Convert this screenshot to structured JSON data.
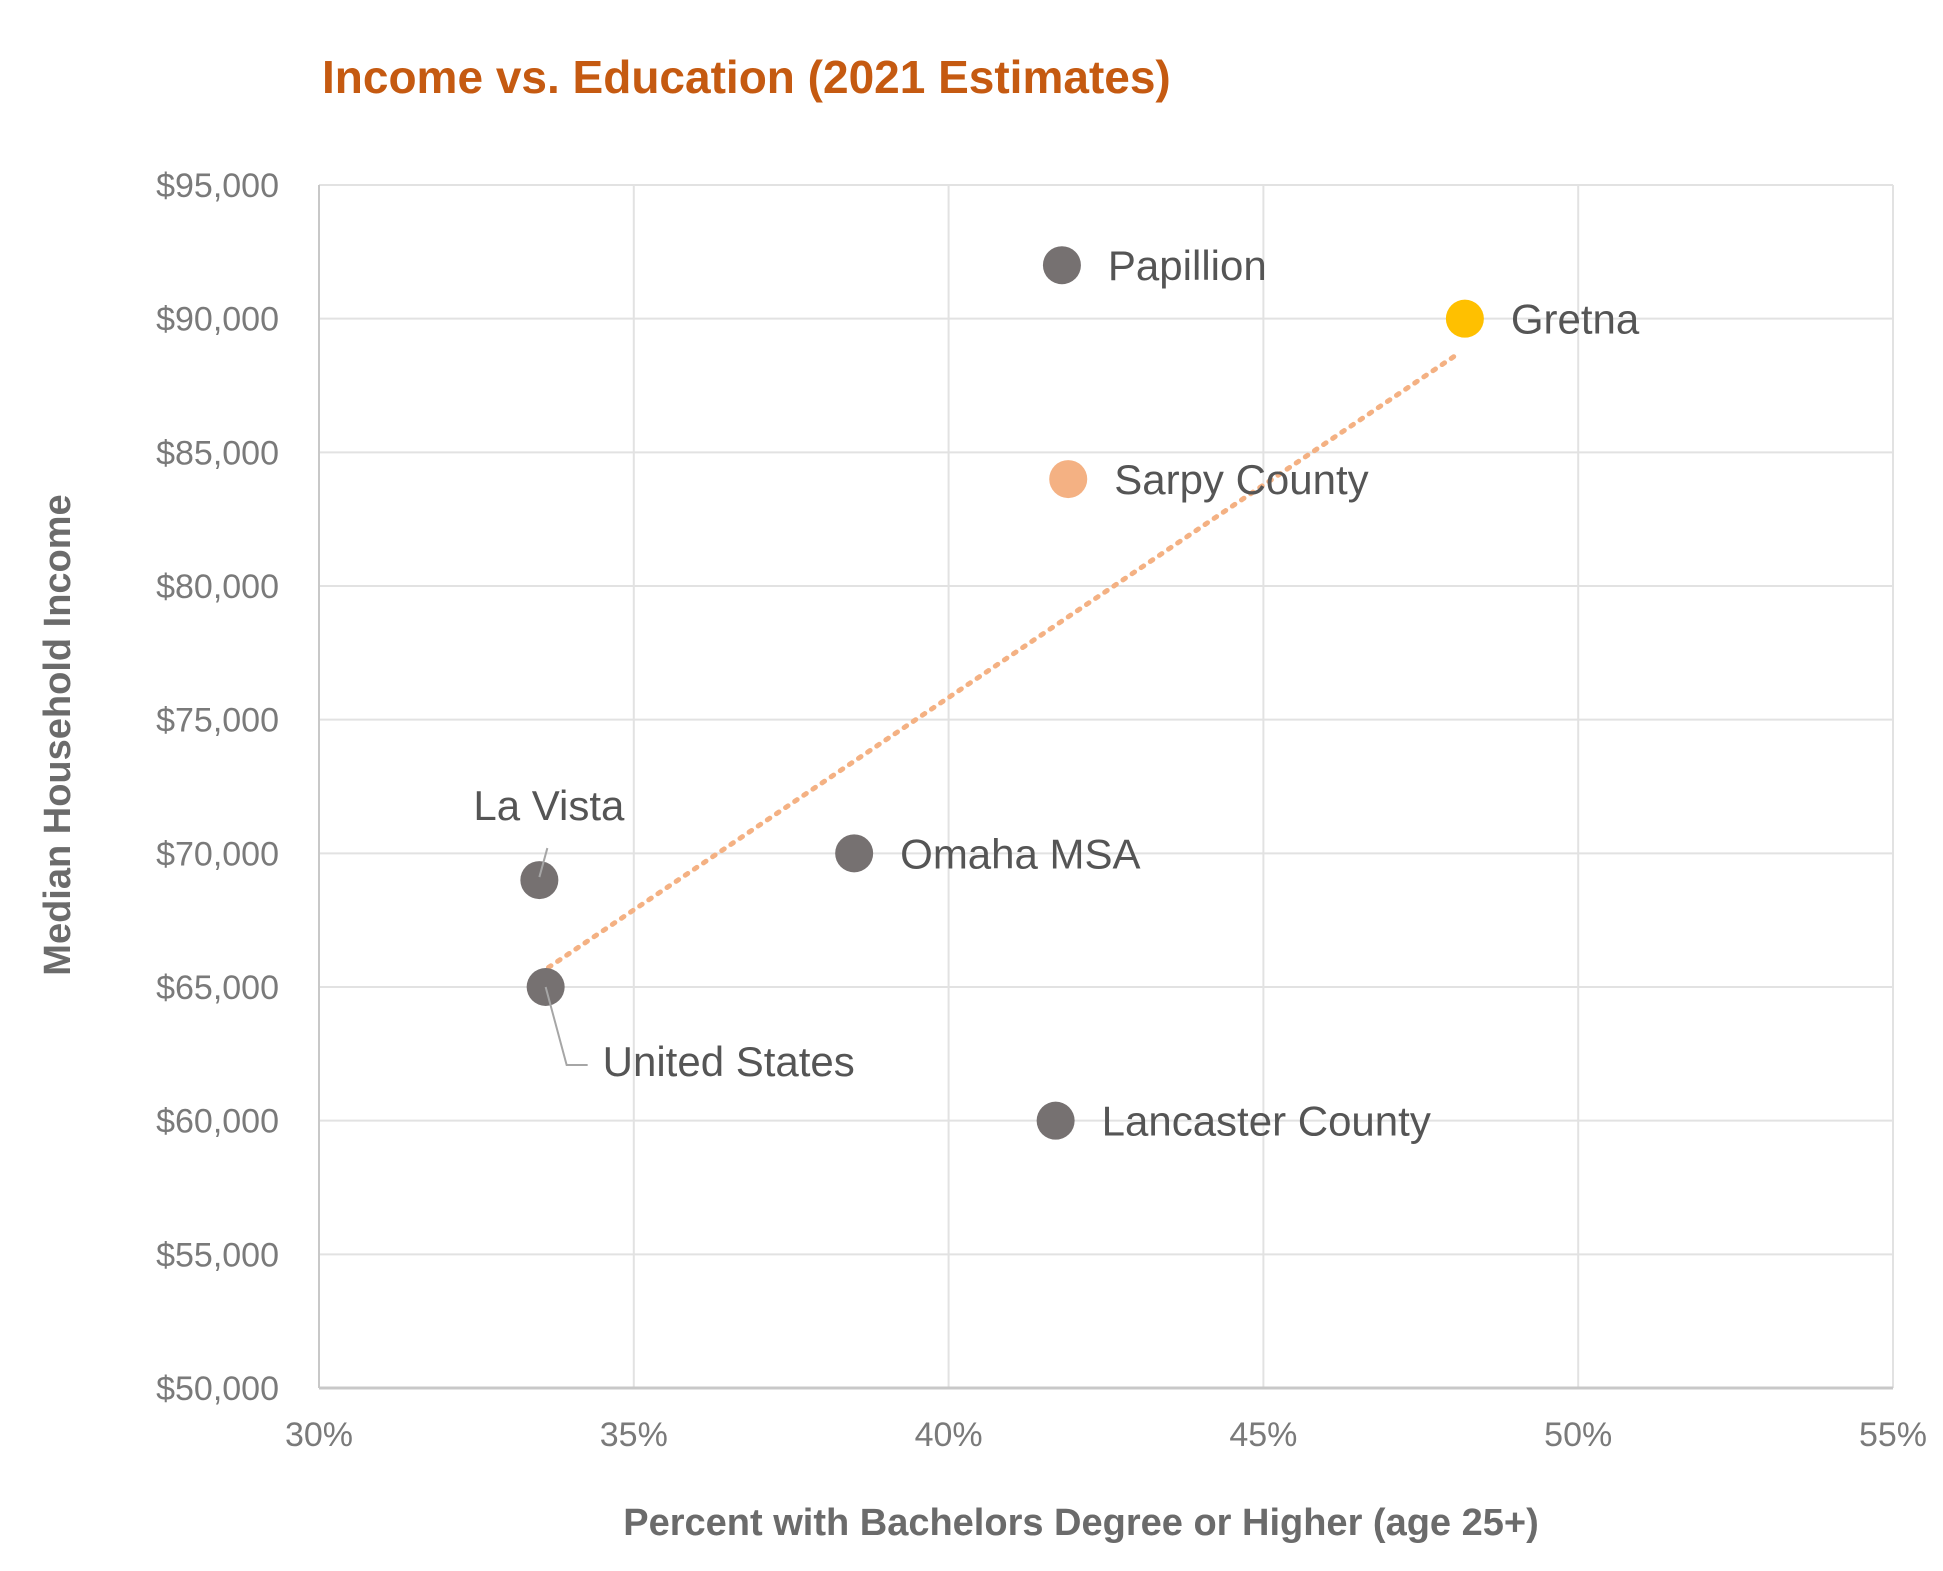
{
  "chart_data": {
    "type": "scatter",
    "title": "Income vs. Education (2021 Estimates)",
    "xlabel": "Percent with Bachelors Degree or Higher (age 25+)",
    "ylabel": "Median Household Income",
    "xlim": [
      30,
      55
    ],
    "ylim": [
      50000,
      95000
    ],
    "x_ticks": [
      30,
      35,
      40,
      45,
      50,
      55
    ],
    "x_tick_labels": [
      "30%",
      "35%",
      "40%",
      "45%",
      "50%",
      "55%"
    ],
    "y_ticks": [
      50000,
      55000,
      60000,
      65000,
      70000,
      75000,
      80000,
      85000,
      90000,
      95000
    ],
    "y_tick_labels": [
      "$50,000",
      "$55,000",
      "$60,000",
      "$65,000",
      "$70,000",
      "$75,000",
      "$80,000",
      "$85,000",
      "$90,000",
      "$95,000"
    ],
    "grid": true,
    "points": [
      {
        "name": "Papillion",
        "x": 41.8,
        "y": 92000,
        "color": "#767171"
      },
      {
        "name": "Gretna",
        "x": 48.2,
        "y": 90000,
        "color": "#FFC000"
      },
      {
        "name": "Sarpy County",
        "x": 41.9,
        "y": 84000,
        "color": "#F4B183"
      },
      {
        "name": "Omaha MSA",
        "x": 38.5,
        "y": 70000,
        "color": "#767171"
      },
      {
        "name": "La Vista",
        "x": 33.5,
        "y": 69000,
        "color": "#767171"
      },
      {
        "name": "United States",
        "x": 33.6,
        "y": 65000,
        "color": "#767171"
      },
      {
        "name": "Lancaster County",
        "x": 41.7,
        "y": 60000,
        "color": "#767171"
      }
    ],
    "trendline": {
      "style": "dotted",
      "color": "#F4B183",
      "from": {
        "x": 33.5,
        "y": 65500
      },
      "to": {
        "x": 48.1,
        "y": 88700
      }
    },
    "colors": {
      "title": "#C55A11",
      "grid": "#e2e2e2",
      "axis": "#c8c8c8",
      "leader_line": "#a6a6a6"
    }
  }
}
